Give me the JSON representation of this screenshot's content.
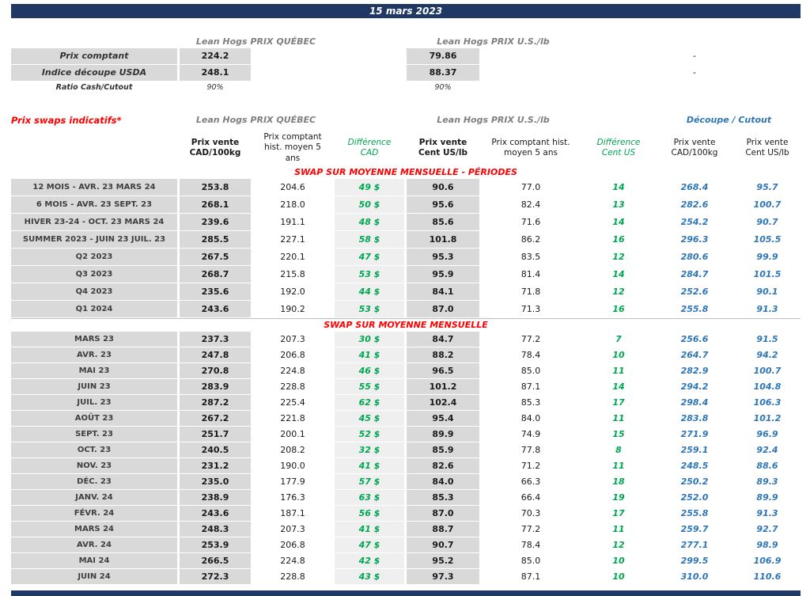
{
  "title_bar": {
    "date": "15 mars 2023"
  },
  "spot_section": {
    "quebec_header": "Lean Hogs PRIX QUÉBEC",
    "us_header": "Lean Hogs PRIX U.S./lb",
    "rows": [
      {
        "label": "Prix comptant",
        "quebec": "224.2",
        "us": "79.86",
        "cutout": "-"
      },
      {
        "label": "Indice découpe USDA",
        "quebec": "248.1",
        "us": "88.37",
        "cutout": "-"
      }
    ],
    "ratio_row": {
      "label": "Ratio Cash/Cutout",
      "quebec": "90%",
      "us": "90%"
    }
  },
  "swap_section": {
    "title": "Prix swaps indicatifs*",
    "quebec_header": "Lean Hogs PRIX QUÉBEC",
    "us_header": "Lean Hogs PRIX U.S./lb",
    "cutout_header": "Découpe / Cutout",
    "column_headers": [
      "Prix vente\nCAD/100kg",
      "Prix comptant\nhist. moyen 5\nans",
      "Différence\nCAD",
      "Prix vente\nCent US/lb",
      "Prix comptant hist.\nmoyen 5 ans",
      "Différence\nCent US",
      "Prix vente\nCAD/100kg",
      "Prix vente\nCent US/lb"
    ],
    "periods": {
      "title": "SWAP SUR MOYENNE MENSUELLE - PÉRIODES",
      "rows": [
        [
          "12 MOIS - AVR. 23 MARS 24",
          "253.8",
          "204.6",
          "49 $",
          "90.6",
          "77.0",
          "14",
          "268.4",
          "95.7"
        ],
        [
          "6 MOIS - AVR. 23 SEPT. 23",
          "268.1",
          "218.0",
          "50 $",
          "95.6",
          "82.4",
          "13",
          "282.6",
          "100.7"
        ],
        [
          "HIVER 23-24 -  OCT. 23 MARS 24",
          "239.6",
          "191.1",
          "48 $",
          "85.6",
          "71.6",
          "14",
          "254.2",
          "90.7"
        ],
        [
          "SUMMER 2023 - JUIN 23 JUIL. 23",
          "285.5",
          "227.1",
          "58 $",
          "101.8",
          "86.2",
          "16",
          "296.3",
          "105.5"
        ],
        [
          "Q2 2023",
          "267.5",
          "220.1",
          "47 $",
          "95.3",
          "83.5",
          "12",
          "280.6",
          "99.9"
        ],
        [
          "Q3 2023",
          "268.7",
          "215.8",
          "53 $",
          "95.9",
          "81.4",
          "14",
          "284.7",
          "101.5"
        ],
        [
          "Q4 2023",
          "235.6",
          "192.0",
          "44 $",
          "84.1",
          "71.8",
          "12",
          "252.6",
          "90.1"
        ],
        [
          "Q1 2024",
          "243.6",
          "190.2",
          "53 $",
          "87.0",
          "71.3",
          "16",
          "255.8",
          "91.3"
        ]
      ]
    },
    "monthly": {
      "title": "SWAP SUR MOYENNE MENSUELLE",
      "rows": [
        [
          "MARS 23",
          "237.3",
          "207.3",
          "30 $",
          "84.7",
          "77.2",
          "7",
          "256.6",
          "91.5"
        ],
        [
          "AVR. 23",
          "247.8",
          "206.8",
          "41 $",
          "88.2",
          "78.4",
          "10",
          "264.7",
          "94.2"
        ],
        [
          "MAI 23",
          "270.8",
          "224.8",
          "46 $",
          "96.5",
          "85.0",
          "11",
          "282.9",
          "100.7"
        ],
        [
          "JUIN 23",
          "283.9",
          "228.8",
          "55 $",
          "101.2",
          "87.1",
          "14",
          "294.2",
          "104.8"
        ],
        [
          "JUIL. 23",
          "287.2",
          "225.4",
          "62 $",
          "102.4",
          "85.3",
          "17",
          "298.4",
          "106.3"
        ],
        [
          "AOÛT 23",
          "267.2",
          "221.8",
          "45 $",
          "95.4",
          "84.0",
          "11",
          "283.8",
          "101.2"
        ],
        [
          "SEPT. 23",
          "251.7",
          "200.1",
          "52 $",
          "89.9",
          "74.9",
          "15",
          "271.9",
          "96.9"
        ],
        [
          "OCT. 23",
          "240.5",
          "208.2",
          "32 $",
          "85.9",
          "77.8",
          "8",
          "259.1",
          "92.4"
        ],
        [
          "NOV. 23",
          "231.2",
          "190.0",
          "41 $",
          "82.6",
          "71.2",
          "11",
          "248.5",
          "88.6"
        ],
        [
          "DÉC. 23",
          "235.0",
          "177.9",
          "57 $",
          "84.0",
          "66.3",
          "18",
          "250.2",
          "89.3"
        ],
        [
          "JANV. 24",
          "238.9",
          "176.3",
          "63 $",
          "85.3",
          "66.4",
          "19",
          "252.0",
          "89.9"
        ],
        [
          "FÉVR. 24",
          "243.6",
          "187.1",
          "56 $",
          "87.0",
          "70.3",
          "17",
          "255.8",
          "91.3"
        ],
        [
          "MARS 24",
          "248.3",
          "207.3",
          "41 $",
          "88.7",
          "77.2",
          "11",
          "259.7",
          "92.7"
        ],
        [
          "AVR. 24",
          "253.9",
          "206.8",
          "47 $",
          "90.7",
          "78.4",
          "12",
          "277.1",
          "98.9"
        ],
        [
          "MAI 24",
          "266.5",
          "224.8",
          "42 $",
          "95.2",
          "85.0",
          "10",
          "299.5",
          "106.9"
        ],
        [
          "JUIN 24",
          "272.3",
          "228.8",
          "43 $",
          "97.3",
          "87.1",
          "10",
          "310.0",
          "110.6"
        ]
      ]
    }
  },
  "colors": {
    "navy": "#203864",
    "red": "#FF0000",
    "green": "#00A651",
    "blue": "#2E75B6",
    "gray_bg": "#D9D9D9",
    "light_gray_bg": "#EFEFEF",
    "gray_header_text": "#7F7F7F"
  }
}
